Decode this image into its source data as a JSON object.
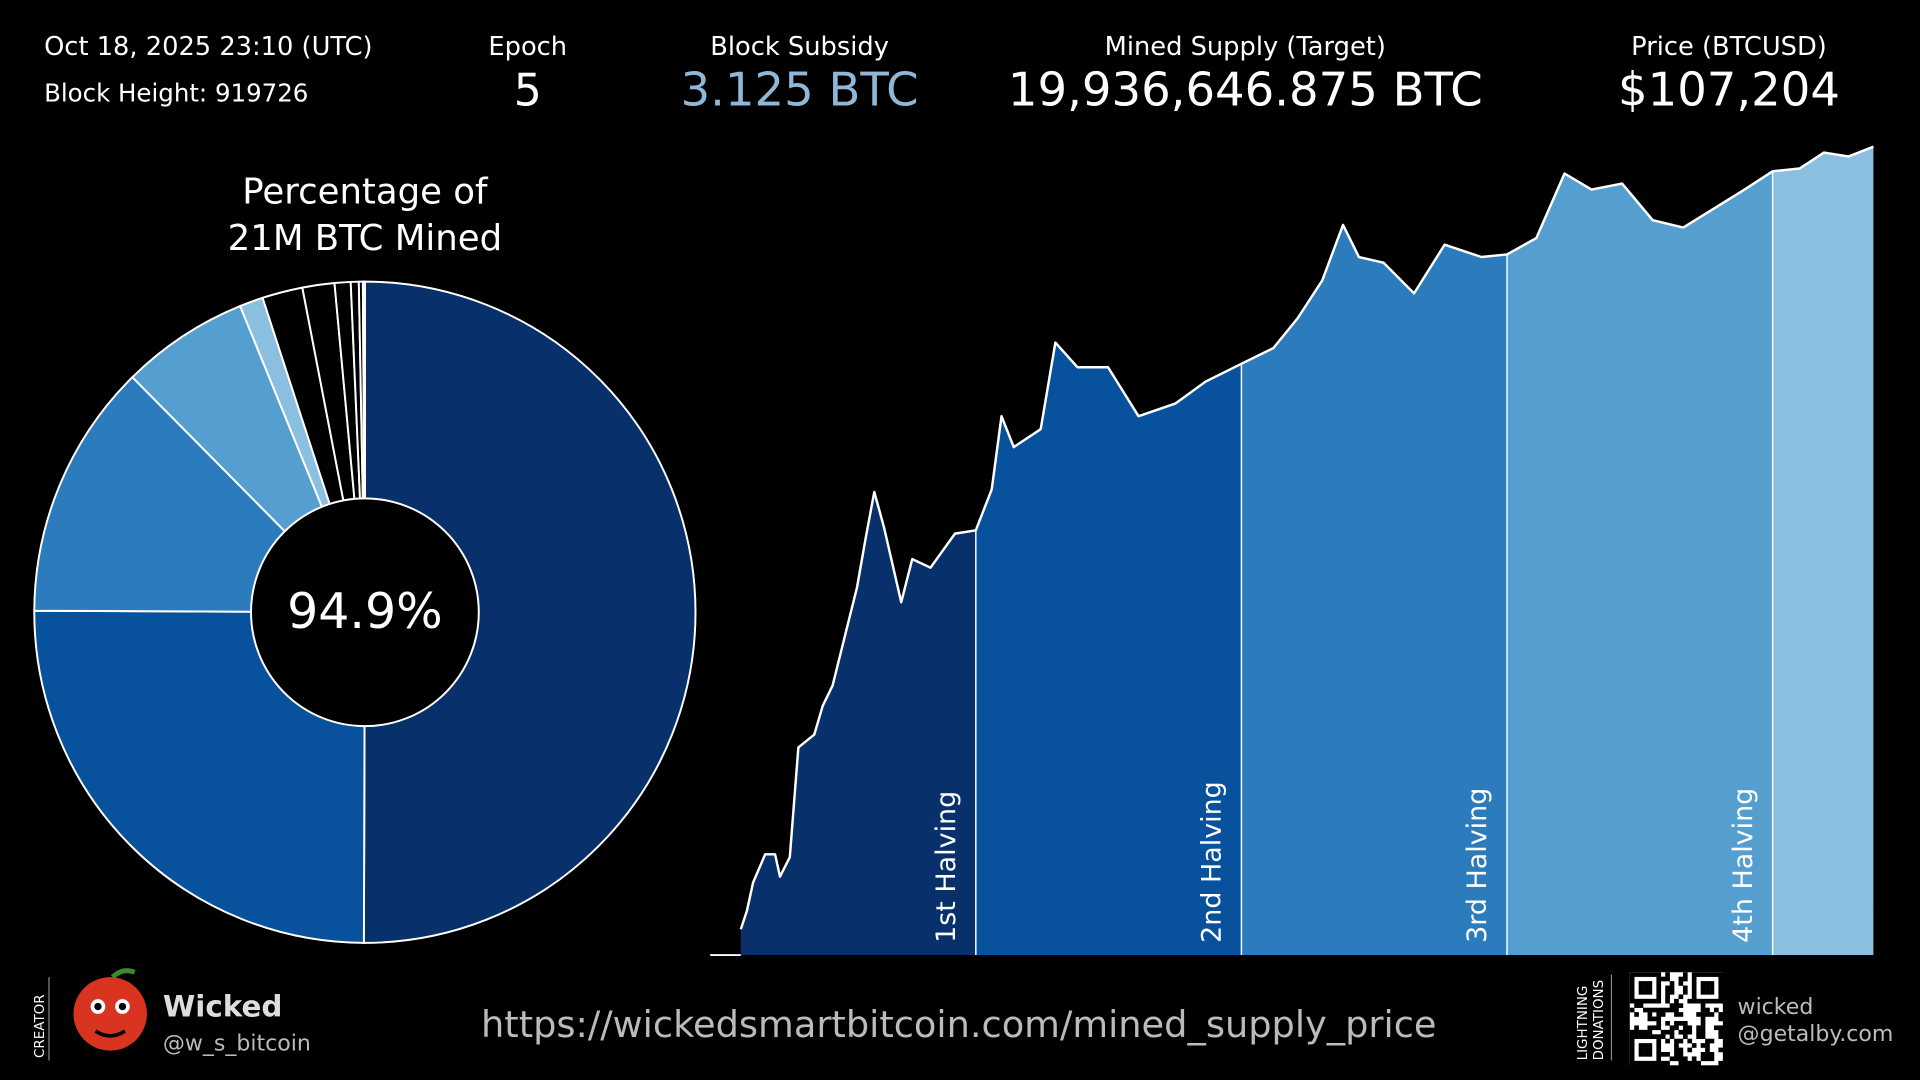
{
  "header": {
    "datetime": "Oct 18, 2025 23:10 (UTC)",
    "block_height": "Block Height: 919726",
    "epoch_label": "Epoch",
    "epoch": "5",
    "subsidy_label": "Block Subsidy",
    "subsidy": "3.125 BTC",
    "supply_label": "Mined Supply (Target)",
    "supply": "19,936,646.875 BTC",
    "price_label": "Price (BTCUSD)",
    "price": "$107,204"
  },
  "chart_data": [
    {
      "type": "pie",
      "title": "Percentage of\n21M BTC Mined",
      "center_text": "94.9%",
      "categories": [
        null,
        null,
        null,
        null,
        null,
        null,
        null,
        null,
        null,
        null,
        null
      ],
      "values": [
        50,
        25,
        12.5,
        6.25,
        1.15,
        1.975,
        1.5625,
        0.78125,
        0.390625,
        0.1953125,
        0.09765625
      ],
      "colors": [
        "#08306b",
        "#08519c",
        "#2c7bbd",
        "#549fcf",
        "#8bbfdf",
        "#000000",
        "#000000",
        "#000000",
        "#000000",
        "#000000",
        "#000000"
      ]
    },
    {
      "type": "area",
      "log_y": true,
      "x": [
        24200,
        29000,
        33900,
        43500,
        51300,
        55200,
        62900,
        69700,
        82300,
        89000,
        96800,
        106400,
        116100,
        122900,
        129700,
        137400,
        151000,
        159700,
        174200,
        193500,
        210000,
        222600,
        230300,
        240000,
        261300,
        272900,
        290300,
        314500,
        338700,
        367700,
        391900,
        420000,
        445200,
        464500,
        483900,
        500300,
        512900,
        532300,
        556500,
        580700,
        609700,
        630000,
        653200,
        675500,
        696800,
        721000,
        745200,
        769400,
        793600,
        817800,
        840000,
        861300,
        880600,
        900000,
        919700
      ],
      "values": [
        0.0011,
        0.0017,
        0.0033,
        0.0064,
        0.0064,
        0.0038,
        0.006,
        0.079,
        0.107,
        0.21,
        0.34,
        1.07,
        3.4,
        10.7,
        32,
        14,
        2.4,
        6.6,
        5.4,
        12,
        13,
        34,
        190,
        92,
        140,
        1070,
        600,
        600,
        190,
        255,
        430,
        650,
        940,
        1900,
        4600,
        17000,
        8000,
        7000,
        3400,
        10700,
        8000,
        8500,
        12500,
        57000,
        39000,
        45000,
        19000,
        16000,
        25000,
        39000,
        60000,
        64000,
        93000,
        85000,
        107000
      ],
      "xlim": [
        0,
        919726
      ],
      "ylim": [
        0.0006,
        130000
      ],
      "line_color": "#ffffff",
      "halvings": [
        210000,
        420000,
        630000,
        840000
      ],
      "halving_labels": [
        "1st Halving",
        "2nd Halving",
        "3rd Halving",
        "4th Halving"
      ],
      "epoch_colors": [
        "#08306b",
        "#08519c",
        "#2c7bbd",
        "#549fcf",
        "#8bbfdf"
      ]
    }
  ],
  "footer": {
    "creator_label": "CREATOR",
    "creator_name": "Wicked",
    "creator_handle": "@w_s_bitcoin",
    "url": "https://wickedsmartbitcoin.com/mined_supply_price",
    "donation_label_1": "LIGHTNING",
    "donation_label_2": "DONATIONS",
    "donation_name": "wicked",
    "donation_address": "@getalby.com"
  }
}
